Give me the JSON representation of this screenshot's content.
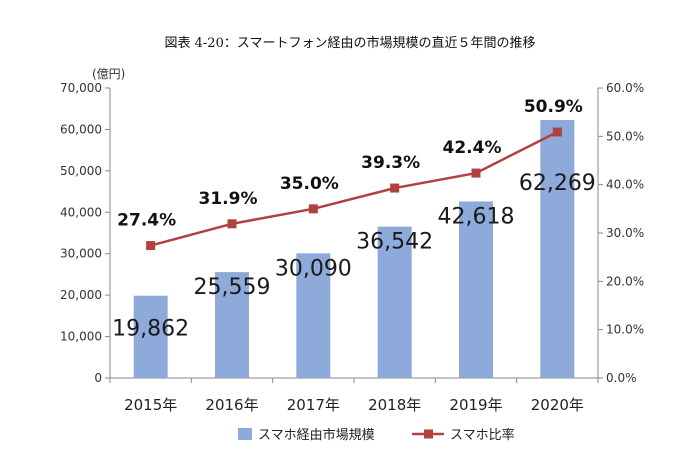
{
  "title": "図表 4-20：スマートフォン経由の市場規模の直近５年間の推移",
  "chart_data": {
    "type": "bar",
    "categories": [
      "2015年",
      "2016年",
      "2017年",
      "2018年",
      "2019年",
      "2020年"
    ],
    "series": [
      {
        "name": "スマホ経由市場規模",
        "type": "bar",
        "axis": "left",
        "color": "#8eaadb",
        "values": [
          19862,
          25559,
          30090,
          36542,
          42618,
          62269
        ],
        "labels": [
          "19,862",
          "25,559",
          "30,090",
          "36,542",
          "42,618",
          "62,269"
        ]
      },
      {
        "name": "スマホ比率",
        "type": "line",
        "axis": "right",
        "color": "#b0413e",
        "values": [
          27.4,
          31.9,
          35.0,
          39.3,
          42.4,
          50.9
        ],
        "labels": [
          "27.4%",
          "31.9%",
          "35.0%",
          "39.3%",
          "42.4%",
          "50.9%"
        ]
      }
    ],
    "y_left": {
      "unit_label": "(億円)",
      "range": [
        0,
        70000
      ],
      "ticks": [
        "0",
        "10,000",
        "20,000",
        "30,000",
        "40,000",
        "50,000",
        "60,000",
        "70,000"
      ]
    },
    "y_right": {
      "range": [
        0,
        60
      ],
      "ticks": [
        "0.0%",
        "10.0%",
        "20.0%",
        "30.0%",
        "40.0%",
        "50.0%",
        "60.0%"
      ]
    },
    "grid": false,
    "legend": "bottom"
  }
}
